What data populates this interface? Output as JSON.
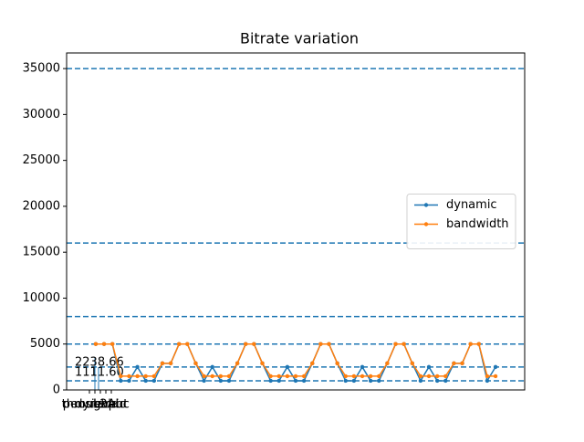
{
  "chart_data": {
    "type": "line",
    "title": "Bitrate variation",
    "x": [
      0,
      2,
      4,
      6,
      8,
      10,
      12,
      14,
      16,
      18,
      20,
      22,
      24,
      26,
      28,
      30,
      32,
      34,
      36,
      38,
      40,
      42,
      44,
      46,
      48,
      50,
      52,
      54,
      56,
      58,
      60,
      62,
      64,
      66,
      68,
      70,
      72,
      74,
      76,
      78,
      80,
      82,
      84,
      86,
      88,
      90,
      92,
      94,
      96
    ],
    "series": [
      {
        "name": "dynamic",
        "color": "#1f77b4",
        "values": [
          5000,
          5000,
          5000,
          1000,
          1000,
          2500,
          1000,
          1000,
          2900,
          2900,
          5000,
          5000,
          2900,
          1000,
          2500,
          1000,
          1000,
          2900,
          5000,
          5000,
          2900,
          1000,
          1000,
          2500,
          1000,
          1000,
          2900,
          5000,
          5000,
          2900,
          1000,
          1000,
          2500,
          1000,
          1000,
          2900,
          5000,
          5000,
          2900,
          1000,
          2500,
          1000,
          1000,
          2900,
          2900,
          5000,
          5000,
          1000,
          2500
        ]
      },
      {
        "name": "bandwidth",
        "color": "#ff7f0e",
        "values": [
          5000,
          5000,
          5000,
          1500,
          1500,
          1500,
          1500,
          1500,
          2900,
          2900,
          5000,
          5000,
          2900,
          1500,
          1500,
          1500,
          1500,
          2900,
          5000,
          5000,
          2900,
          1500,
          1500,
          1500,
          1500,
          1500,
          2900,
          5000,
          5000,
          2900,
          1500,
          1500,
          1500,
          1500,
          1500,
          2900,
          5000,
          5000,
          2900,
          1500,
          1500,
          1500,
          1500,
          2900,
          2900,
          5000,
          5000,
          1500,
          1500
        ]
      }
    ],
    "hlines": [
      1000,
      2500,
      5000,
      8000,
      16000,
      35000
    ],
    "hline_color": "#1f77b4",
    "annotations": [
      "2238.66",
      "1111.60"
    ],
    "xtick_labels": [
      "pensieve",
      "throughput",
      "dynamic",
      "bola",
      "L2Abc"
    ],
    "xlim": [
      -7,
      103
    ],
    "ylim": [
      0,
      36700
    ],
    "yticks": [
      0,
      5000,
      10000,
      15000,
      20000,
      25000,
      30000,
      35000
    ],
    "legend": "center right"
  }
}
